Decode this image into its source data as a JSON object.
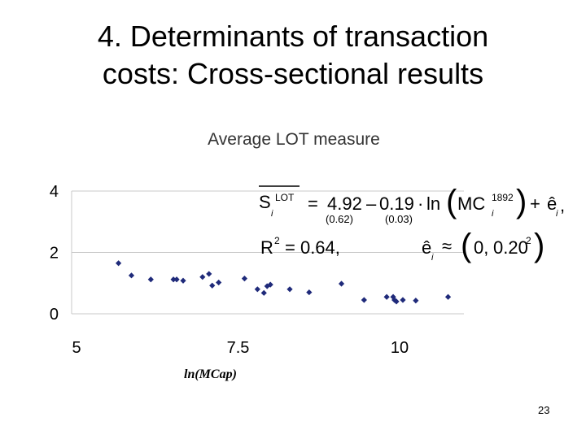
{
  "slide": {
    "title_line1": "4. Determinants of transaction",
    "title_line2": "costs: Cross-sectional results",
    "page_number": "23"
  },
  "equation": {
    "lhs_var": "S",
    "lhs_sup": "LOT",
    "lhs_sub": "i",
    "equals": "=",
    "intercept": "4.92",
    "minus": "–",
    "slope": "0.19",
    "dot": "·",
    "ln": "ln",
    "regressor": "MC",
    "regressor_sup": "1892",
    "regressor_sub": "i",
    "plus": "+",
    "residual": "ê",
    "residual_sub": "i",
    "trailing_comma": ",",
    "se_intercept": "0.62",
    "se_slope": "0.03",
    "r2_label": "R",
    "r2_sup": "2",
    "r2_value": "= 0.64,",
    "dist_var": "ê",
    "dist_sub": "i",
    "approx": "≈",
    "dist_mean": "0,",
    "dist_var_value": "0.20",
    "dist_var_sup": "2"
  },
  "chart_data": {
    "type": "scatter",
    "title": "Average LOT measure",
    "xlabel": "ln(MCap)",
    "ylabel": "",
    "xlim": [
      5,
      12
    ],
    "ylim": [
      0,
      4
    ],
    "x_ticks": [
      "5",
      "7.5",
      "10"
    ],
    "y_ticks": [
      "0",
      "2",
      "4"
    ],
    "marker_color": "#1f2a7a",
    "grid_color": "#c8c8c8",
    "series": [
      {
        "name": "Average LOT measure",
        "points": [
          [
            5.65,
            1.65
          ],
          [
            5.85,
            1.25
          ],
          [
            6.15,
            1.12
          ],
          [
            6.5,
            1.12
          ],
          [
            6.55,
            1.12
          ],
          [
            6.65,
            1.08
          ],
          [
            6.95,
            1.2
          ],
          [
            7.05,
            1.3
          ],
          [
            7.1,
            0.92
          ],
          [
            7.2,
            1.02
          ],
          [
            7.6,
            1.15
          ],
          [
            7.8,
            0.8
          ],
          [
            7.9,
            0.68
          ],
          [
            7.95,
            0.9
          ],
          [
            8.0,
            0.95
          ],
          [
            8.3,
            0.8
          ],
          [
            8.6,
            0.7
          ],
          [
            9.1,
            0.98
          ],
          [
            9.45,
            0.45
          ],
          [
            9.8,
            0.55
          ],
          [
            9.9,
            0.55
          ],
          [
            9.92,
            0.45
          ],
          [
            9.95,
            0.4
          ],
          [
            10.05,
            0.45
          ],
          [
            10.25,
            0.43
          ],
          [
            10.75,
            0.55
          ]
        ]
      }
    ]
  }
}
